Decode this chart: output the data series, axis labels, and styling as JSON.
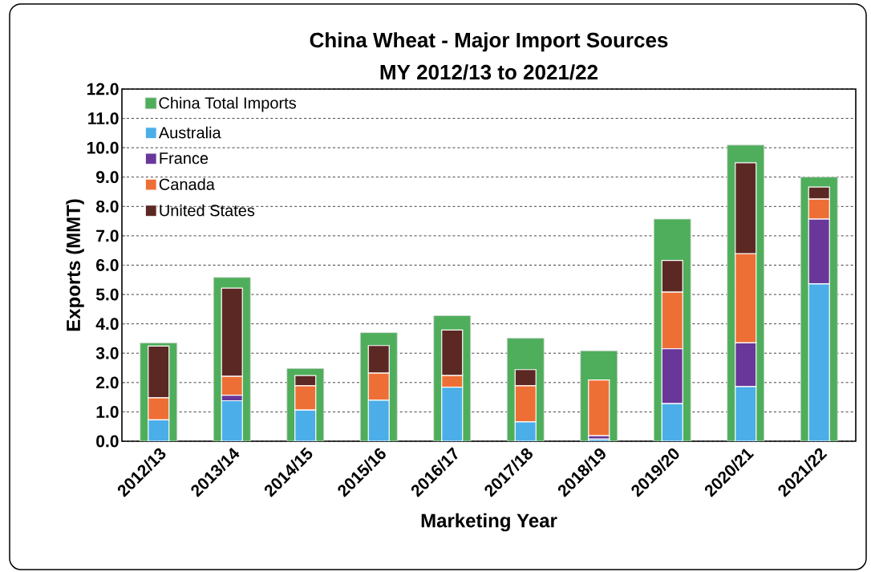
{
  "chart_data": [
    {
      "type": "bar",
      "title": "China Wheat - Major Import Sources",
      "subtitle": "MY 2012/13 to 2021/22",
      "xlabel": "Marketing Year",
      "ylabel": "Exports (MMT)",
      "categories": [
        "2012/13",
        "2013/14",
        "2014/15",
        "2015/16",
        "2016/17",
        "2017/18",
        "2018/19",
        "2019/20",
        "2020/21",
        "2021/22"
      ],
      "series": [
        {
          "name": "China Total Imports",
          "color": "#4fae5b",
          "values": [
            3.35,
            5.58,
            2.48,
            3.7,
            4.28,
            3.51,
            3.08,
            7.57,
            10.09,
            9.0
          ]
        }
      ],
      "ylim": [
        0,
        12
      ],
      "yticks": [
        {
          "value": 0,
          "label": "0.0"
        },
        {
          "value": 1,
          "label": "1.0"
        },
        {
          "value": 2,
          "label": "2.0"
        },
        {
          "value": 3,
          "label": "3.0"
        },
        {
          "value": 4,
          "label": "4.0"
        },
        {
          "value": 5,
          "label": "5.0"
        },
        {
          "value": 6,
          "label": "6.0"
        },
        {
          "value": 7,
          "label": "7.0"
        },
        {
          "value": 8,
          "label": "8.0"
        },
        {
          "value": 9,
          "label": "9.0"
        },
        {
          "value": 10,
          "label": "10.0"
        },
        {
          "value": 11,
          "label": "11.0"
        },
        {
          "value": 12,
          "label": "12.0"
        }
      ],
      "grid": "y",
      "legend": "top left"
    },
    {
      "type": "bar",
      "stacked": true,
      "tick_labels": false,
      "categories": [
        "2012/13",
        "2013/14",
        "2014/15",
        "2015/16",
        "2016/17",
        "2017/18",
        "2018/19",
        "2019/20",
        "2020/21",
        "2021/22"
      ],
      "series": [
        {
          "name": "Australia",
          "color": "#4baee8",
          "values": [
            0.73,
            1.38,
            1.06,
            1.4,
            1.84,
            0.66,
            0.07,
            1.28,
            1.86,
            5.36
          ]
        },
        {
          "name": "France",
          "color": "#69379a",
          "values": [
            0,
            0.19,
            0,
            0,
            0,
            0,
            0.12,
            1.87,
            1.49,
            2.21
          ]
        },
        {
          "name": "Canada",
          "color": "#ee6f35",
          "values": [
            0.75,
            0.64,
            0.83,
            0.92,
            0.4,
            1.23,
            1.9,
            1.93,
            3.04,
            0.68
          ]
        },
        {
          "name": "United States",
          "color": "#5c2824",
          "values": [
            1.76,
            3.01,
            0.35,
            0.94,
            1.55,
            0.55,
            0,
            1.08,
            3.1,
            0.41
          ]
        }
      ],
      "ylim": [
        0,
        12
      ],
      "legend": "top left"
    }
  ]
}
